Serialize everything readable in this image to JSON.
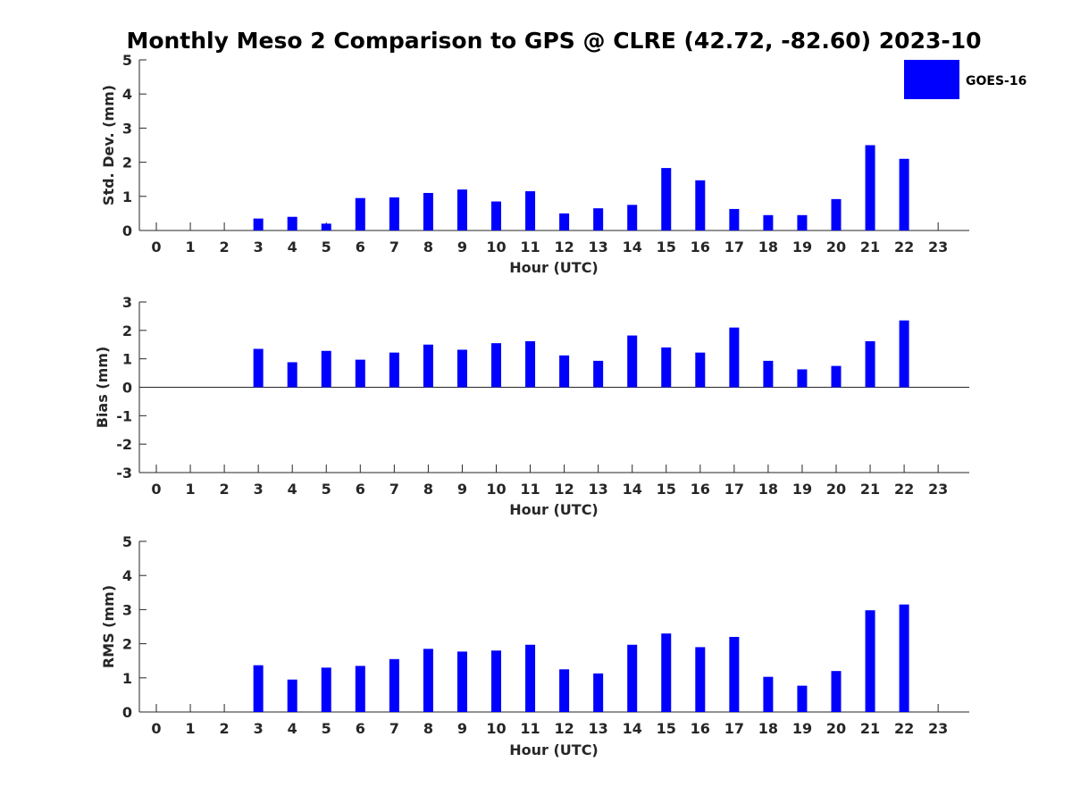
{
  "figure_title": "Monthly Meso 2 Comparison to GPS @ CLRE (42.72, -82.60) 2023-10",
  "colors": {
    "bar": "#0000ff",
    "axis": "#262626",
    "background": "#ffffff"
  },
  "legend": {
    "label": "GOES-16",
    "placement": "top-right"
  },
  "chart_data": [
    {
      "type": "bar",
      "title": "",
      "xlabel": "Hour (UTC)",
      "ylabel": "Std. Dev. (mm)",
      "categories": [
        "0",
        "1",
        "2",
        "3",
        "4",
        "5",
        "6",
        "7",
        "8",
        "9",
        "10",
        "11",
        "12",
        "13",
        "14",
        "15",
        "16",
        "17",
        "18",
        "19",
        "20",
        "21",
        "22",
        "23"
      ],
      "ylim": [
        0,
        5
      ],
      "yticks": [
        "0",
        "1",
        "2",
        "3",
        "4",
        "5"
      ],
      "series": [
        {
          "name": "GOES-16",
          "values": [
            null,
            null,
            null,
            0.35,
            0.4,
            0.2,
            0.95,
            0.97,
            1.1,
            1.2,
            0.85,
            1.15,
            0.5,
            0.65,
            0.75,
            1.83,
            1.47,
            0.63,
            0.45,
            0.45,
            0.92,
            2.5,
            2.1,
            null
          ]
        }
      ]
    },
    {
      "type": "bar",
      "title": "",
      "xlabel": "Hour (UTC)",
      "ylabel": "Bias (mm)",
      "categories": [
        "0",
        "1",
        "2",
        "3",
        "4",
        "5",
        "6",
        "7",
        "8",
        "9",
        "10",
        "11",
        "12",
        "13",
        "14",
        "15",
        "16",
        "17",
        "18",
        "19",
        "20",
        "21",
        "22",
        "23"
      ],
      "ylim": [
        -3,
        3
      ],
      "yticks": [
        "-3",
        "-2",
        "-1",
        "0",
        "1",
        "2",
        "3"
      ],
      "series": [
        {
          "name": "GOES-16",
          "values": [
            null,
            null,
            null,
            1.35,
            0.88,
            1.28,
            0.97,
            1.22,
            1.5,
            1.32,
            1.55,
            1.62,
            1.12,
            0.93,
            1.82,
            1.4,
            1.22,
            2.1,
            0.93,
            0.63,
            0.75,
            1.62,
            2.35,
            null
          ]
        }
      ]
    },
    {
      "type": "bar",
      "title": "",
      "xlabel": "Hour (UTC)",
      "ylabel": "RMS (mm)",
      "categories": [
        "0",
        "1",
        "2",
        "3",
        "4",
        "5",
        "6",
        "7",
        "8",
        "9",
        "10",
        "11",
        "12",
        "13",
        "14",
        "15",
        "16",
        "17",
        "18",
        "19",
        "20",
        "21",
        "22",
        "23"
      ],
      "ylim": [
        0,
        5
      ],
      "yticks": [
        "0",
        "1",
        "2",
        "3",
        "4",
        "5"
      ],
      "series": [
        {
          "name": "GOES-16",
          "values": [
            null,
            null,
            null,
            1.37,
            0.95,
            1.3,
            1.35,
            1.55,
            1.85,
            1.77,
            1.8,
            1.97,
            1.25,
            1.13,
            1.97,
            2.3,
            1.9,
            2.2,
            1.03,
            0.77,
            1.2,
            2.98,
            3.15,
            null
          ]
        }
      ]
    }
  ]
}
